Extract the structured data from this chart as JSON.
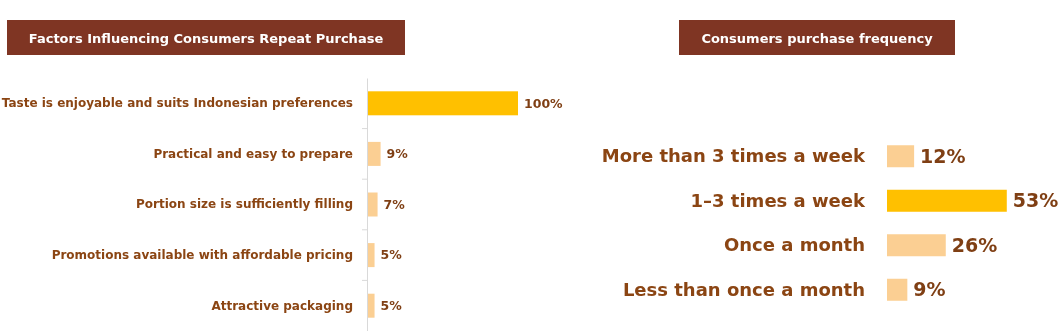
{
  "chart_data": [
    {
      "type": "bar",
      "orientation": "horizontal",
      "title": "Factors Influencing Consumers Repeat Purchase",
      "categories": [
        "Taste is enjoyable and suits Indonesian preferences",
        "Practical and easy to prepare",
        "Portion size is sufficiently filling",
        "Promotions available with affordable pricing",
        "Attractive packaging"
      ],
      "values": [
        100,
        9,
        7,
        5,
        5
      ],
      "colors": [
        "#ffc000",
        "#fbcf93",
        "#fbcf93",
        "#fbcf93",
        "#fbcf93"
      ],
      "value_labels": [
        "100%",
        "9%",
        "7%",
        "5%",
        "5%"
      ]
    },
    {
      "type": "bar",
      "orientation": "horizontal",
      "title": "Consumers purchase frequency",
      "categories": [
        "More than 3 times a week",
        "1–3 times a week",
        "Once a month",
        "Less than once a month"
      ],
      "values": [
        12,
        53,
        26,
        9
      ],
      "colors": [
        "#fbcf93",
        "#ffc000",
        "#fbcf93",
        "#fbcf93"
      ],
      "value_labels": [
        "12%",
        "53%",
        "26%",
        "9%"
      ]
    }
  ]
}
